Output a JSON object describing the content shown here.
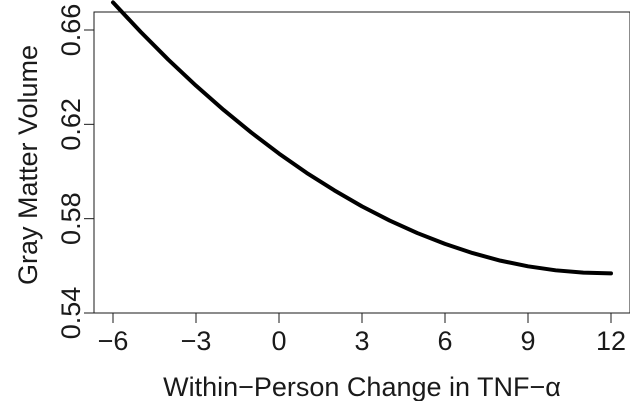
{
  "chart_data": {
    "type": "line",
    "title": "",
    "xlabel": "Within−Person Change in TNF−α",
    "ylabel": "Gray Matter Volume",
    "xlim": [
      -6,
      12
    ],
    "ylim": [
      0.54,
      0.67
    ],
    "x_ticks": [
      -6,
      -3,
      0,
      3,
      6,
      9,
      12
    ],
    "x_tick_labels": [
      "−6",
      "−3",
      "0",
      "3",
      "6",
      "9",
      "12"
    ],
    "y_ticks": [
      0.54,
      0.58,
      0.62,
      0.66
    ],
    "y_tick_labels": [
      "0.54",
      "0.58",
      "0.62",
      "0.66"
    ],
    "grid": false,
    "legend": "none",
    "series": [
      {
        "color": "#000000",
        "x": [
          -6,
          -5,
          -4,
          -3,
          -2,
          -1,
          0,
          1,
          2,
          3,
          4,
          5,
          6,
          7,
          8,
          9,
          10,
          11,
          12
        ],
        "y": [
          0.6717,
          0.6592,
          0.6474,
          0.6364,
          0.6261,
          0.6165,
          0.6076,
          0.5994,
          0.592,
          0.5852,
          0.5792,
          0.5739,
          0.5693,
          0.5654,
          0.5622,
          0.5598,
          0.5581,
          0.5571,
          0.5568
        ]
      }
    ]
  }
}
